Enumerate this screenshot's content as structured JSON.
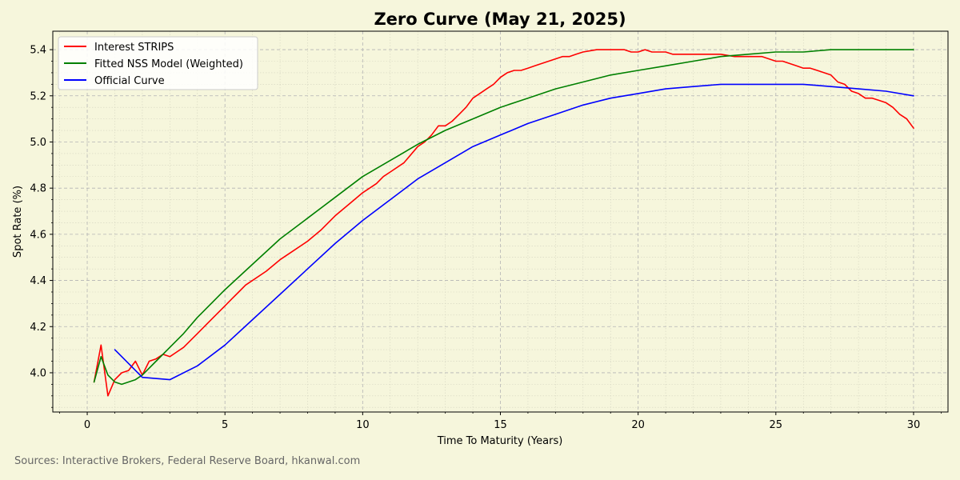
{
  "chart_data": {
    "type": "line",
    "title": "Zero Curve (May 21, 2025)",
    "xlabel": "Time To Maturity (Years)",
    "ylabel": "Spot Rate (%)",
    "xlim": [
      -1.25,
      31.25
    ],
    "ylim": [
      3.83,
      5.48
    ],
    "xticks": [
      0,
      5,
      10,
      15,
      20,
      25,
      30
    ],
    "yticks": [
      4.0,
      4.2,
      4.4,
      4.6,
      4.8,
      5.0,
      5.2,
      5.4
    ],
    "grid": true,
    "legend_position": "top-left",
    "source": "Sources: Interactive Brokers, Federal Reserve Board, hkanwal.com",
    "series": [
      {
        "name": "Interest STRIPS",
        "color": "#ff0000",
        "x": [
          0.25,
          0.5,
          0.75,
          1.0,
          1.25,
          1.5,
          1.75,
          2.0,
          2.25,
          2.5,
          2.75,
          3.0,
          3.25,
          3.5,
          4.0,
          4.5,
          5.0,
          5.25,
          5.5,
          5.75,
          6.0,
          6.5,
          7.0,
          7.25,
          7.5,
          8.0,
          8.5,
          9.0,
          9.5,
          10.0,
          10.25,
          10.5,
          10.75,
          11.0,
          11.5,
          12.0,
          12.25,
          12.5,
          12.75,
          13.0,
          13.25,
          13.5,
          13.75,
          14.0,
          14.25,
          14.5,
          14.75,
          15.0,
          15.25,
          15.5,
          15.75,
          16.0,
          16.25,
          16.5,
          16.75,
          17.0,
          17.25,
          17.5,
          17.75,
          18.0,
          18.5,
          18.75,
          19.0,
          19.25,
          19.5,
          19.75,
          20.0,
          20.25,
          20.5,
          20.75,
          21.0,
          21.25,
          21.5,
          21.75,
          22.0,
          22.25,
          22.5,
          23.0,
          23.5,
          24.0,
          24.25,
          24.5,
          24.75,
          25.0,
          25.25,
          25.5,
          25.75,
          26.0,
          26.25,
          26.5,
          26.75,
          27.0,
          27.25,
          27.5,
          27.75,
          28.0,
          28.25,
          28.5,
          28.75,
          29.0,
          29.25,
          29.5,
          29.75,
          30.0
        ],
        "y": [
          3.96,
          4.12,
          3.9,
          3.97,
          4.0,
          4.01,
          4.05,
          3.99,
          4.05,
          4.06,
          4.08,
          4.07,
          4.09,
          4.11,
          4.17,
          4.23,
          4.29,
          4.32,
          4.35,
          4.38,
          4.4,
          4.44,
          4.49,
          4.51,
          4.53,
          4.57,
          4.62,
          4.68,
          4.73,
          4.78,
          4.8,
          4.82,
          4.85,
          4.87,
          4.91,
          4.98,
          5.0,
          5.03,
          5.07,
          5.07,
          5.09,
          5.12,
          5.15,
          5.19,
          5.21,
          5.23,
          5.25,
          5.28,
          5.3,
          5.31,
          5.31,
          5.32,
          5.33,
          5.34,
          5.35,
          5.36,
          5.37,
          5.37,
          5.38,
          5.39,
          5.4,
          5.4,
          5.4,
          5.4,
          5.4,
          5.39,
          5.39,
          5.4,
          5.39,
          5.39,
          5.39,
          5.38,
          5.38,
          5.38,
          5.38,
          5.38,
          5.38,
          5.38,
          5.37,
          5.37,
          5.37,
          5.37,
          5.36,
          5.35,
          5.35,
          5.34,
          5.33,
          5.32,
          5.32,
          5.31,
          5.3,
          5.29,
          5.26,
          5.25,
          5.22,
          5.21,
          5.19,
          5.19,
          5.18,
          5.17,
          5.15,
          5.12,
          5.1,
          5.06
        ]
      },
      {
        "name": "Fitted NSS Model (Weighted)",
        "color": "#008000",
        "x": [
          0.25,
          0.5,
          0.75,
          1.0,
          1.25,
          1.5,
          1.75,
          2.0,
          2.5,
          3.0,
          3.5,
          4.0,
          4.5,
          5.0,
          6.0,
          7.0,
          8.0,
          9.0,
          10.0,
          11.0,
          12.0,
          13.0,
          14.0,
          15.0,
          16.0,
          17.0,
          18.0,
          19.0,
          20.0,
          21.0,
          22.0,
          23.0,
          24.0,
          25.0,
          26.0,
          27.0,
          28.0,
          29.0,
          30.0
        ],
        "y": [
          3.96,
          4.07,
          3.99,
          3.96,
          3.95,
          3.96,
          3.97,
          3.99,
          4.05,
          4.11,
          4.17,
          4.24,
          4.3,
          4.36,
          4.47,
          4.58,
          4.67,
          4.76,
          4.85,
          4.92,
          4.99,
          5.05,
          5.1,
          5.15,
          5.19,
          5.23,
          5.26,
          5.29,
          5.31,
          5.33,
          5.35,
          5.37,
          5.38,
          5.39,
          5.39,
          5.4,
          5.4,
          5.4,
          5.4
        ]
      },
      {
        "name": "Official Curve",
        "color": "#0000ff",
        "x": [
          1.0,
          2.0,
          3.0,
          4.0,
          5.0,
          6.0,
          7.0,
          8.0,
          9.0,
          10.0,
          11.0,
          12.0,
          13.0,
          14.0,
          15.0,
          16.0,
          17.0,
          18.0,
          19.0,
          20.0,
          21.0,
          22.0,
          23.0,
          24.0,
          25.0,
          26.0,
          27.0,
          28.0,
          29.0,
          30.0
        ],
        "y": [
          4.1,
          3.98,
          3.97,
          4.03,
          4.12,
          4.23,
          4.34,
          4.45,
          4.56,
          4.66,
          4.75,
          4.84,
          4.91,
          4.98,
          5.03,
          5.08,
          5.12,
          5.16,
          5.19,
          5.21,
          5.23,
          5.24,
          5.25,
          5.25,
          5.25,
          5.25,
          5.24,
          5.23,
          5.22,
          5.2
        ]
      }
    ]
  }
}
